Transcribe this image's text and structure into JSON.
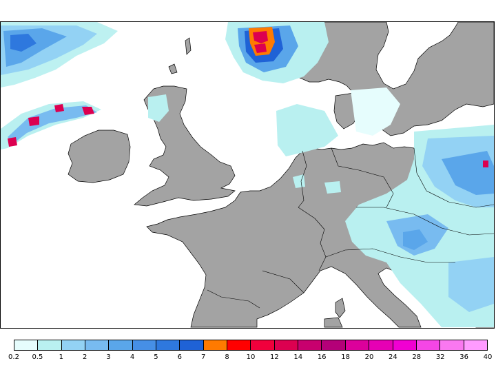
{
  "map": {
    "land_color": "#a3a3a3",
    "sea_color": "#ffffff",
    "coast_color": "#000000"
  },
  "legend": {
    "colors": [
      "#e6fdfd",
      "#b9f0f0",
      "#93d2f4",
      "#78bbf0",
      "#5aa6ea",
      "#468fe6",
      "#2e78de",
      "#1f62d6",
      "#ff7a00",
      "#ff0000",
      "#f0003c",
      "#dc0050",
      "#c8006e",
      "#b40078",
      "#dc009b",
      "#e600b4",
      "#f000d2",
      "#f546e6",
      "#fa78f0",
      "#ff9bff"
    ],
    "labels": [
      "0.2",
      "0.5",
      "1",
      "2",
      "3",
      "4",
      "5",
      "6",
      "7",
      "8",
      "10",
      "12",
      "14",
      "16",
      "18",
      "20",
      "24",
      "28",
      "32",
      "36",
      "40"
    ]
  }
}
